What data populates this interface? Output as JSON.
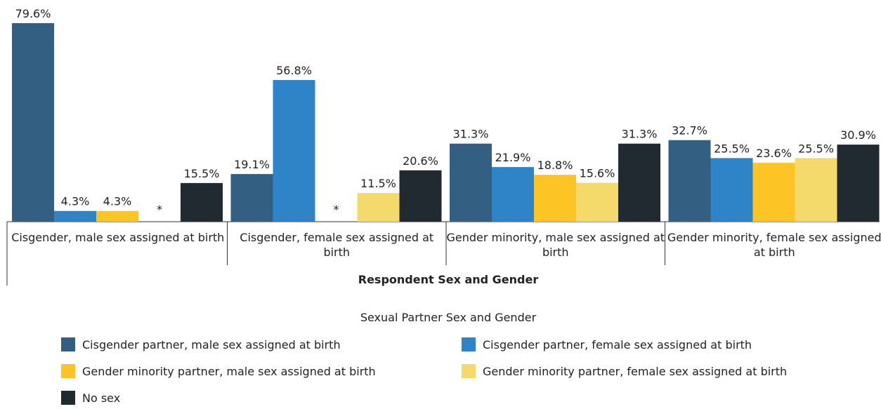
{
  "chart_data": {
    "type": "bar",
    "x_label": "Respondent Sex and Gender",
    "legend_title": "Sexual Partner Sex and Gender",
    "categories": [
      "Cisgender, male sex assigned at birth",
      "Cisgender, female sex assigned at birth",
      "Gender minority, male sex assigned at birth",
      "Gender minority, female sex assigned at birth"
    ],
    "series": [
      {
        "name": "Cisgender partner, male sex assigned at birth",
        "color": "#335f82",
        "values": [
          79.6,
          19.1,
          31.3,
          32.7
        ],
        "value_labels": [
          "79.6%",
          "19.1%",
          "31.3%",
          "32.7%"
        ]
      },
      {
        "name": "Cisgender partner, female sex assigned at birth",
        "color": "#2e84c6",
        "values": [
          4.3,
          56.8,
          21.9,
          25.5
        ],
        "value_labels": [
          "4.3%",
          "56.8%",
          "21.9%",
          "25.5%"
        ]
      },
      {
        "name": "Gender minority partner, male sex assigned at birth",
        "color": "#fdc426",
        "values": [
          4.3,
          null,
          18.8,
          23.6
        ],
        "value_labels": [
          "4.3%",
          "*",
          "18.8%",
          "23.6%"
        ]
      },
      {
        "name": "Gender minority partner, female sex assigned at birth",
        "color": "#f3da6b",
        "values": [
          null,
          11.5,
          15.6,
          25.5
        ],
        "value_labels": [
          "*",
          "11.5%",
          "15.6%",
          "25.5%"
        ]
      },
      {
        "name": "No sex",
        "color": "#212a31",
        "values": [
          15.5,
          20.6,
          31.3,
          30.9
        ],
        "value_labels": [
          "15.5%",
          "20.6%",
          "31.3%",
          "30.9%"
        ]
      }
    ]
  }
}
